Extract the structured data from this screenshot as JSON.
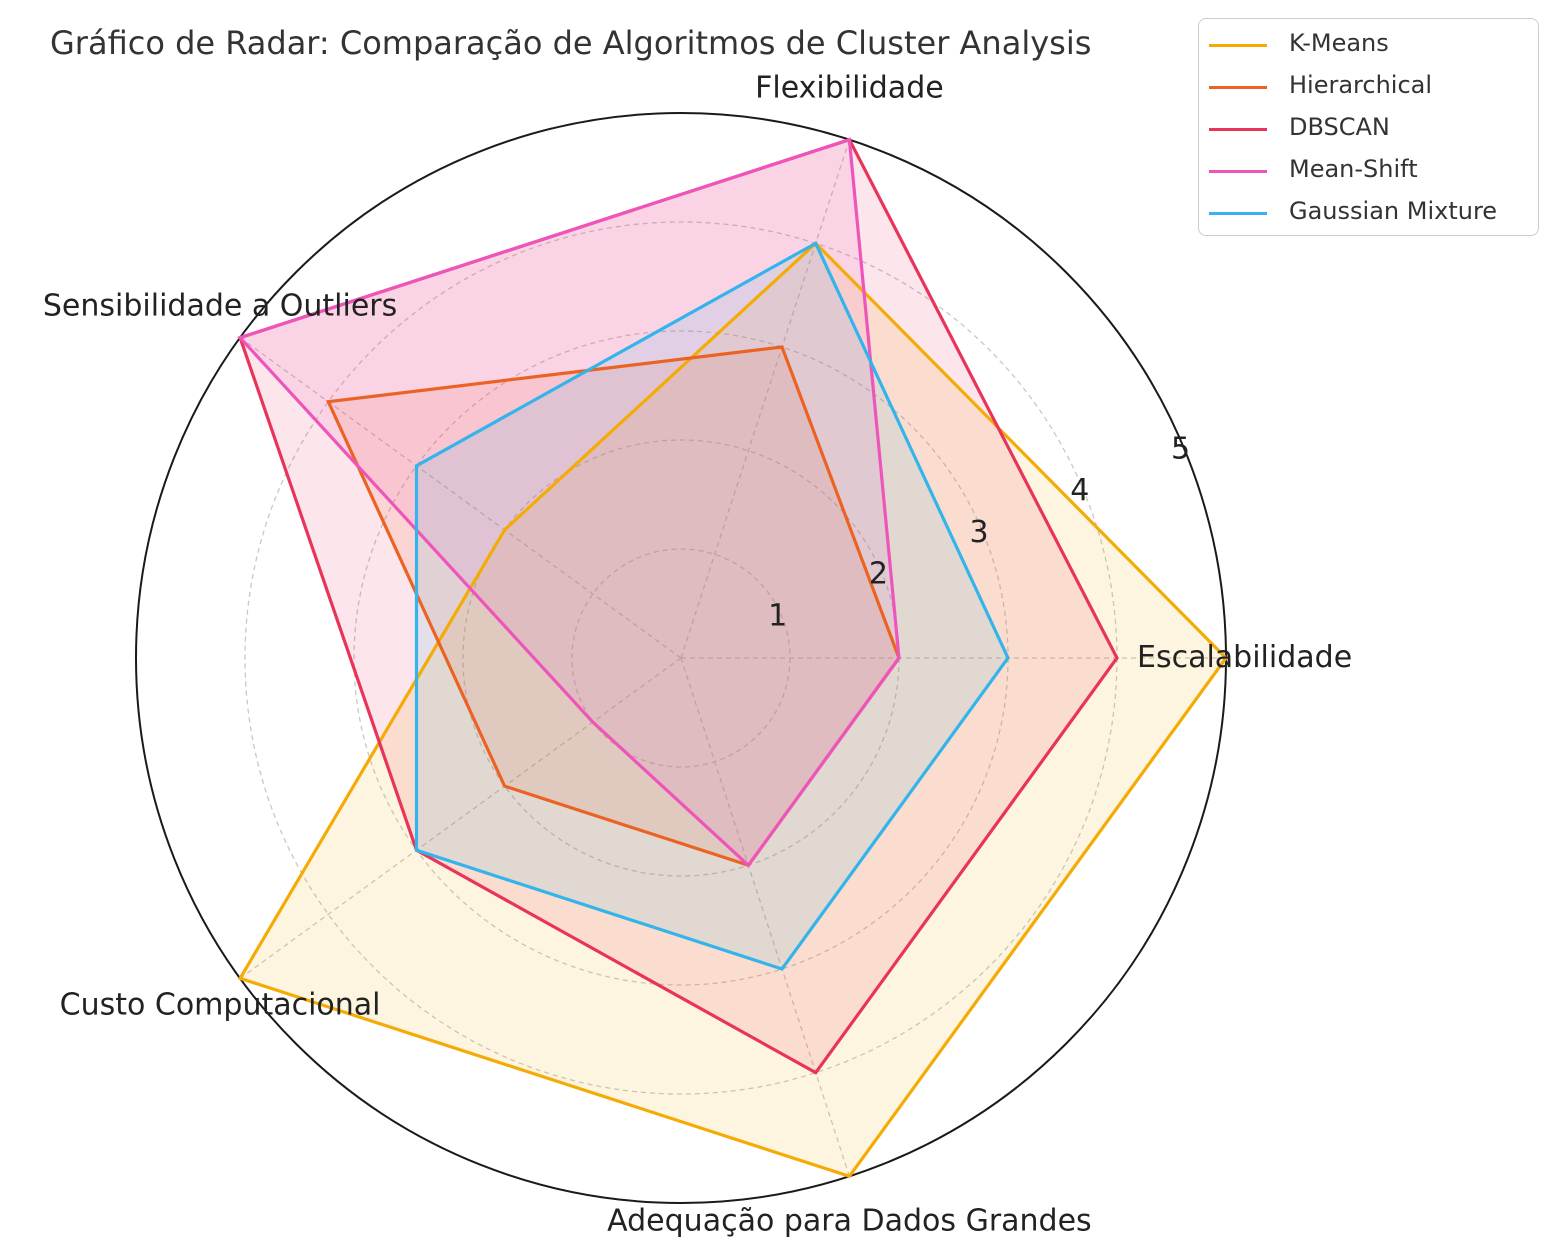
{
  "chart_data": {
    "type": "radar",
    "title": "Gráfico de Radar: Comparação de Algoritmos de Cluster Analysis",
    "axes": [
      "Escalabilidade",
      "Flexibilidade",
      "Sensibilidade a Outliers",
      "Custo Computacional",
      "Adequação para Dados Grandes"
    ],
    "rlim": [
      0,
      5
    ],
    "rticks": [
      1,
      2,
      3,
      4,
      5
    ],
    "grid": true,
    "legend_position": "top-right",
    "series": [
      {
        "name": "K-Means",
        "values": [
          5,
          4,
          2,
          5,
          5
        ],
        "color": "#f5ab05"
      },
      {
        "name": "Hierarchical",
        "values": [
          2,
          3,
          4,
          2,
          2
        ],
        "color": "#eb6324"
      },
      {
        "name": "DBSCAN",
        "values": [
          4,
          5,
          5,
          3,
          4
        ],
        "color": "#e8345a"
      },
      {
        "name": "Mean-Shift",
        "values": [
          2,
          5,
          5,
          1,
          2
        ],
        "color": "#ee55bb"
      },
      {
        "name": "Gaussian Mixture",
        "values": [
          3,
          4,
          3,
          3,
          3
        ],
        "color": "#33b4ea"
      }
    ]
  }
}
